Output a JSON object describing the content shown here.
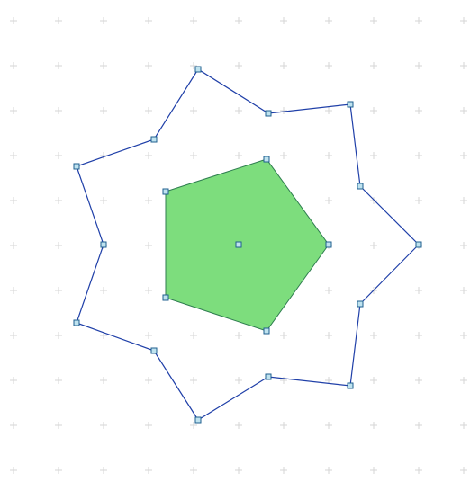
{
  "canvas": {
    "background": "#ffffff",
    "grid_mark_color": "#d6d6d6"
  },
  "shapes": {
    "outer_polygon": {
      "kind": "star-polygon",
      "vertex_count": 14,
      "filled": false,
      "stroke_color": "#1f3fa8"
    },
    "inner_polygon": {
      "kind": "pentagon",
      "vertex_count": 5,
      "filled": true,
      "fill_color": "#7ddd7d",
      "stroke_color": "#2e7d4f"
    },
    "center_handle": {
      "kind": "center-point"
    },
    "handle_style": {
      "fill_color": "#bfe3ef",
      "stroke_color": "#1f5f8f"
    }
  }
}
